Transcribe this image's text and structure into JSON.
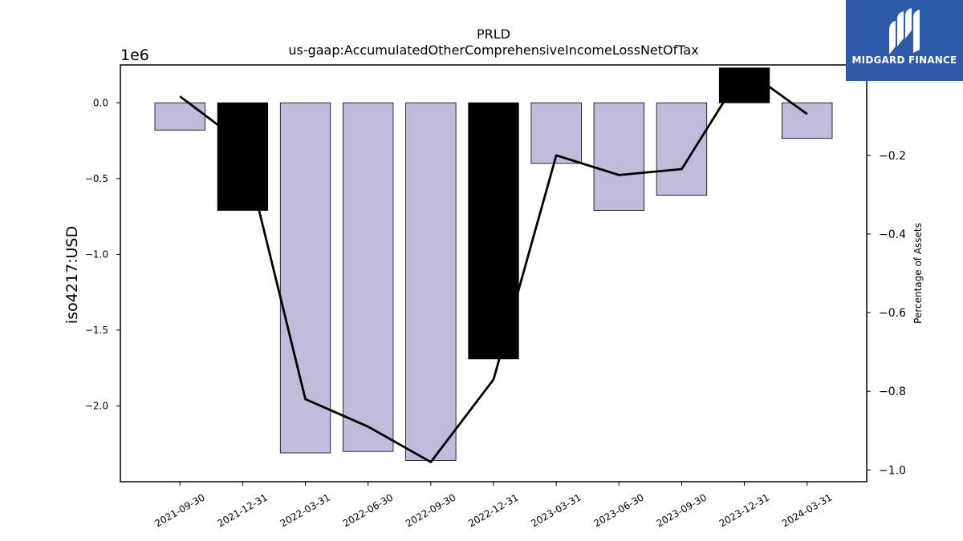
{
  "chart_data": {
    "type": "bar",
    "title": "PRLD",
    "subtitle": "us-gaap:AccumulatedOtherComprehensiveIncomeLossNetOfTax",
    "ylabel": "iso4217:USD",
    "y2label": "Percentage of Assets",
    "y_offset_text": "1e6",
    "categories": [
      "2021-09-30",
      "2021-12-31",
      "2022-03-31",
      "2022-06-30",
      "2022-09-30",
      "2022-12-31",
      "2023-03-31",
      "2023-06-30",
      "2023-09-30",
      "2023-12-31",
      "2024-03-31"
    ],
    "values": [
      -180000,
      -710000,
      -2310000,
      -2300000,
      -2360000,
      -1690000,
      -400000,
      -710000,
      -610000,
      230000,
      -235000
    ],
    "bar_colors": [
      "#bebbdb",
      "#000000",
      "#bebbdb",
      "#bebbdb",
      "#bebbdb",
      "#000000",
      "#bebbdb",
      "#bebbdb",
      "#bebbdb",
      "#000000",
      "#bebbdb"
    ],
    "ylim": [
      -2.5,
      0.25
    ],
    "yticks": [
      0.0,
      -0.5,
      -1.0,
      -1.5,
      -2.0
    ],
    "ytick_labels": [
      "0.0",
      "−0.5",
      "−1.0",
      "−1.5",
      "−2.0"
    ],
    "line_series": {
      "name": "",
      "values": [
        -0.05,
        -0.17,
        -0.82,
        -0.89,
        -0.98,
        -0.77,
        -0.2,
        -0.25,
        -0.235,
        0.02,
        -0.095
      ],
      "ylim": [
        -1.03,
        0.03
      ],
      "yticks": [
        0.0,
        -0.2,
        -0.4,
        -0.6,
        -0.8,
        -1.0
      ],
      "ytick_labels": [
        "0.0",
        "−0.2",
        "−0.4",
        "−0.6",
        "−0.8",
        "−1.0"
      ],
      "color": "#000000"
    },
    "grid": false,
    "legend": "none"
  },
  "logo": {
    "text": "MIDGARD FINANCE",
    "color": "#2c5aa8"
  }
}
